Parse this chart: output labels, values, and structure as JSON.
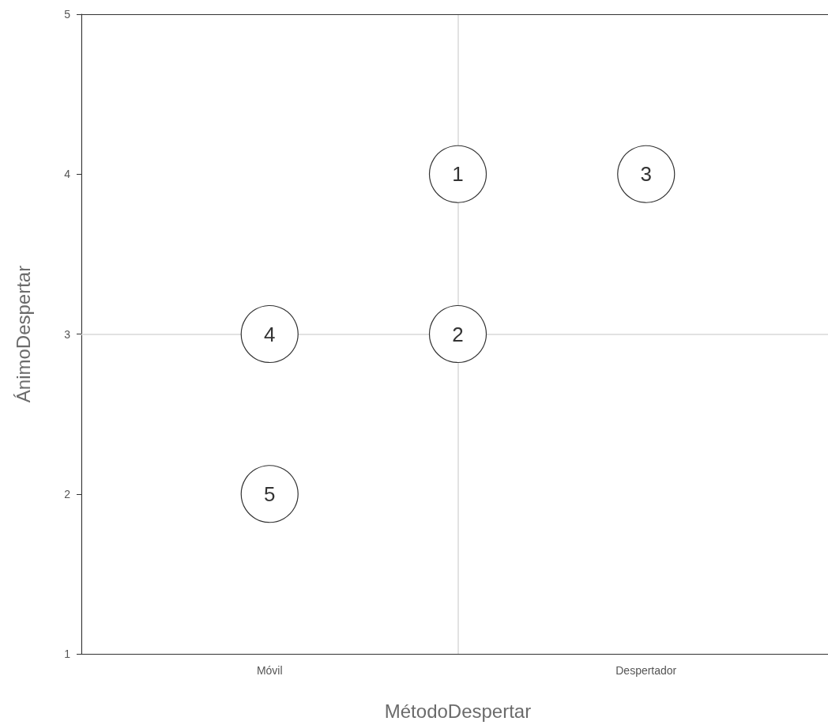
{
  "chart_data": {
    "type": "scatter",
    "xlabel": "MétodoDespertar",
    "ylabel": "ÁnimoDespertar",
    "categories": [
      null,
      "Móvil",
      null,
      "Despertador",
      null
    ],
    "ylim": [
      1,
      5
    ],
    "yticks": [
      1,
      2,
      3,
      4,
      5
    ],
    "series": [
      {
        "name": "1",
        "color": "#333333",
        "values": [
          null,
          null,
          4,
          null,
          null
        ]
      },
      {
        "name": "2",
        "color": "#333333",
        "values": [
          null,
          null,
          3,
          null,
          null
        ]
      },
      {
        "name": "3",
        "color": "#333333",
        "values": [
          null,
          null,
          null,
          4,
          null
        ]
      },
      {
        "name": "4",
        "color": "#333333",
        "values": [
          null,
          3,
          null,
          null,
          null
        ]
      },
      {
        "name": "5",
        "color": "#333333",
        "values": [
          null,
          2,
          null,
          null,
          null
        ]
      }
    ],
    "ref_lines": [
      {
        "axis": "y",
        "value": 3,
        "color": "#d9d9d9"
      }
    ],
    "marker": "circle",
    "grid": "x",
    "legend": false
  }
}
